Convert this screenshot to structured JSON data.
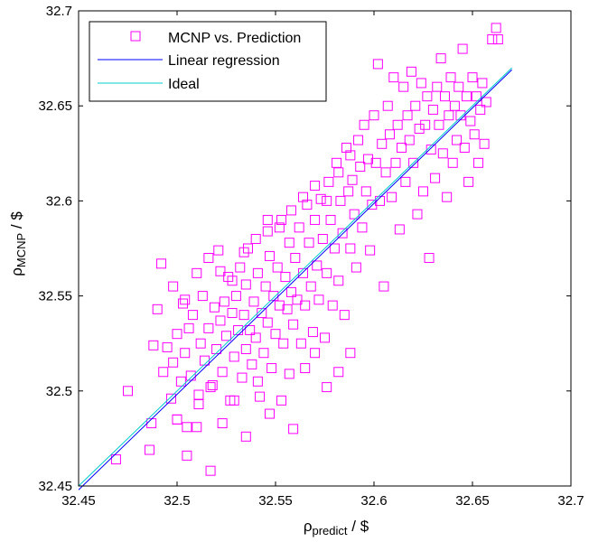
{
  "chart_data": {
    "type": "scatter",
    "xlabel": {
      "base": "ρ",
      "sub": "predict",
      "suffix": " / $"
    },
    "ylabel": {
      "base": "ρ",
      "sub": "MCNP",
      "suffix": " / $"
    },
    "xlim": [
      32.45,
      32.7
    ],
    "ylim": [
      32.45,
      32.7
    ],
    "xticks": [
      "32.45",
      "32.5",
      "32.55",
      "32.6",
      "32.65",
      "32.7"
    ],
    "yticks": [
      "32.45",
      "32.5",
      "32.55",
      "32.6",
      "32.65",
      "32.7"
    ],
    "grid": false,
    "legend_position": "top-left",
    "series": [
      {
        "name": "MCNP vs. Prediction",
        "kind": "markers",
        "marker": "square",
        "color": "#ff00ff",
        "points": [
          [
            32.469,
            32.464
          ],
          [
            32.475,
            32.5
          ],
          [
            32.486,
            32.469
          ],
          [
            32.487,
            32.483
          ],
          [
            32.488,
            32.524
          ],
          [
            32.49,
            32.543
          ],
          [
            32.492,
            32.567
          ],
          [
            32.493,
            32.51
          ],
          [
            32.495,
            32.523
          ],
          [
            32.497,
            32.496
          ],
          [
            32.498,
            32.515
          ],
          [
            32.5,
            32.53
          ],
          [
            32.5,
            32.485
          ],
          [
            32.502,
            32.505
          ],
          [
            32.503,
            32.546
          ],
          [
            32.504,
            32.52
          ],
          [
            32.505,
            32.466
          ],
          [
            32.506,
            32.533
          ],
          [
            32.507,
            32.508
          ],
          [
            32.508,
            32.54
          ],
          [
            32.51,
            32.481
          ],
          [
            32.511,
            32.498
          ],
          [
            32.512,
            32.525
          ],
          [
            32.513,
            32.55
          ],
          [
            32.514,
            32.516
          ],
          [
            32.516,
            32.533
          ],
          [
            32.517,
            32.458
          ],
          [
            32.518,
            32.503
          ],
          [
            32.519,
            32.544
          ],
          [
            32.52,
            32.522
          ],
          [
            32.521,
            32.574
          ],
          [
            32.522,
            32.537
          ],
          [
            32.523,
            32.51
          ],
          [
            32.524,
            32.547
          ],
          [
            32.525,
            32.529
          ],
          [
            32.526,
            32.56
          ],
          [
            32.527,
            32.495
          ],
          [
            32.528,
            32.541
          ],
          [
            32.529,
            32.518
          ],
          [
            32.53,
            32.55
          ],
          [
            32.531,
            32.532
          ],
          [
            32.532,
            32.565
          ],
          [
            32.533,
            32.507
          ],
          [
            32.534,
            32.54
          ],
          [
            32.535,
            32.522
          ],
          [
            32.535,
            32.556
          ],
          [
            32.536,
            32.575
          ],
          [
            32.537,
            32.532
          ],
          [
            32.538,
            32.514
          ],
          [
            32.539,
            32.547
          ],
          [
            32.54,
            32.528
          ],
          [
            32.541,
            32.562
          ],
          [
            32.542,
            32.497
          ],
          [
            32.543,
            32.541
          ],
          [
            32.544,
            32.52
          ],
          [
            32.545,
            32.555
          ],
          [
            32.546,
            32.584
          ],
          [
            32.546,
            32.536
          ],
          [
            32.547,
            32.571
          ],
          [
            32.548,
            32.512
          ],
          [
            32.549,
            32.55
          ],
          [
            32.55,
            32.53
          ],
          [
            32.551,
            32.565
          ],
          [
            32.552,
            32.545
          ],
          [
            32.553,
            32.59
          ],
          [
            32.554,
            32.525
          ],
          [
            32.555,
            32.56
          ],
          [
            32.556,
            32.543
          ],
          [
            32.557,
            32.578
          ],
          [
            32.557,
            32.509
          ],
          [
            32.558,
            32.552
          ],
          [
            32.559,
            32.535
          ],
          [
            32.56,
            32.57
          ],
          [
            32.561,
            32.548
          ],
          [
            32.562,
            32.586
          ],
          [
            32.563,
            32.525
          ],
          [
            32.564,
            32.562
          ],
          [
            32.565,
            32.545
          ],
          [
            32.566,
            32.598
          ],
          [
            32.567,
            32.578
          ],
          [
            32.568,
            32.555
          ],
          [
            32.569,
            32.531
          ],
          [
            32.57,
            32.59
          ],
          [
            32.571,
            32.566
          ],
          [
            32.572,
            32.548
          ],
          [
            32.573,
            32.601
          ],
          [
            32.574,
            32.58
          ],
          [
            32.575,
            32.528
          ],
          [
            32.576,
            32.562
          ],
          [
            32.577,
            32.61
          ],
          [
            32.578,
            32.59
          ],
          [
            32.579,
            32.545
          ],
          [
            32.58,
            32.575
          ],
          [
            32.581,
            32.62
          ],
          [
            32.582,
            32.558
          ],
          [
            32.583,
            32.6
          ],
          [
            32.584,
            32.583
          ],
          [
            32.585,
            32.54
          ],
          [
            32.586,
            32.628
          ],
          [
            32.587,
            32.605
          ],
          [
            32.588,
            32.575
          ],
          [
            32.589,
            32.611
          ],
          [
            32.59,
            32.593
          ],
          [
            32.591,
            32.565
          ],
          [
            32.592,
            32.632
          ],
          [
            32.593,
            32.618
          ],
          [
            32.594,
            32.586
          ],
          [
            32.595,
            32.64
          ],
          [
            32.596,
            32.605
          ],
          [
            32.597,
            32.622
          ],
          [
            32.598,
            32.574
          ],
          [
            32.599,
            32.598
          ],
          [
            32.6,
            32.645
          ],
          [
            32.601,
            32.62
          ],
          [
            32.602,
            32.672
          ],
          [
            32.603,
            32.6
          ],
          [
            32.604,
            32.63
          ],
          [
            32.605,
            32.555
          ],
          [
            32.606,
            32.615
          ],
          [
            32.607,
            32.65
          ],
          [
            32.608,
            32.635
          ],
          [
            32.609,
            32.602
          ],
          [
            32.61,
            32.665
          ],
          [
            32.611,
            32.62
          ],
          [
            32.612,
            32.64
          ],
          [
            32.613,
            32.585
          ],
          [
            32.614,
            32.628
          ],
          [
            32.615,
            32.66
          ],
          [
            32.616,
            32.61
          ],
          [
            32.617,
            32.645
          ],
          [
            32.618,
            32.632
          ],
          [
            32.619,
            32.668
          ],
          [
            32.62,
            32.62
          ],
          [
            32.621,
            32.65
          ],
          [
            32.622,
            32.593
          ],
          [
            32.623,
            32.638
          ],
          [
            32.624,
            32.662
          ],
          [
            32.625,
            32.605
          ],
          [
            32.626,
            32.64
          ],
          [
            32.627,
            32.655
          ],
          [
            32.628,
            32.57
          ],
          [
            32.629,
            32.627
          ],
          [
            32.63,
            32.648
          ],
          [
            32.631,
            32.612
          ],
          [
            32.632,
            32.66
          ],
          [
            32.633,
            32.64
          ],
          [
            32.634,
            32.675
          ],
          [
            32.635,
            32.625
          ],
          [
            32.636,
            32.655
          ],
          [
            32.637,
            32.602
          ],
          [
            32.638,
            32.645
          ],
          [
            32.639,
            32.665
          ],
          [
            32.64,
            32.62
          ],
          [
            32.641,
            32.65
          ],
          [
            32.642,
            32.632
          ],
          [
            32.643,
            32.66
          ],
          [
            32.644,
            32.645
          ],
          [
            32.645,
            32.68
          ],
          [
            32.646,
            32.628
          ],
          [
            32.647,
            32.655
          ],
          [
            32.648,
            32.61
          ],
          [
            32.649,
            32.642
          ],
          [
            32.65,
            32.665
          ],
          [
            32.651,
            32.635
          ],
          [
            32.652,
            32.655
          ],
          [
            32.653,
            32.62
          ],
          [
            32.654,
            32.648
          ],
          [
            32.655,
            32.662
          ],
          [
            32.656,
            32.63
          ],
          [
            32.657,
            32.652
          ],
          [
            32.66,
            32.685
          ],
          [
            32.662,
            32.691
          ],
          [
            32.663,
            32.685
          ],
          [
            32.5,
            32.485
          ],
          [
            32.505,
            32.481
          ],
          [
            32.511,
            32.493
          ],
          [
            32.517,
            32.502
          ],
          [
            32.523,
            32.483
          ],
          [
            32.529,
            32.495
          ],
          [
            32.535,
            32.476
          ],
          [
            32.541,
            32.505
          ],
          [
            32.547,
            32.488
          ],
          [
            32.553,
            32.495
          ],
          [
            32.559,
            32.48
          ],
          [
            32.565,
            32.512
          ],
          [
            32.57,
            32.52
          ],
          [
            32.576,
            32.502
          ],
          [
            32.582,
            32.51
          ],
          [
            32.588,
            32.52
          ],
          [
            32.498,
            32.555
          ],
          [
            32.504,
            32.548
          ],
          [
            32.51,
            32.562
          ],
          [
            32.516,
            32.57
          ],
          [
            32.522,
            32.563
          ],
          [
            32.528,
            32.558
          ],
          [
            32.534,
            32.573
          ],
          [
            32.54,
            32.58
          ],
          [
            32.546,
            32.59
          ],
          [
            32.552,
            32.586
          ],
          [
            32.558,
            32.595
          ],
          [
            32.564,
            32.602
          ],
          [
            32.57,
            32.608
          ],
          [
            32.576,
            32.6
          ],
          [
            32.582,
            32.615
          ],
          [
            32.588,
            32.624
          ]
        ]
      },
      {
        "name": "Linear regression",
        "kind": "line",
        "color": "#0000ff",
        "points": [
          [
            32.45,
            32.448
          ],
          [
            32.67,
            32.669
          ]
        ]
      },
      {
        "name": "Ideal",
        "kind": "line",
        "color": "#00cccc",
        "points": [
          [
            32.45,
            32.45
          ],
          [
            32.67,
            32.67
          ]
        ]
      }
    ]
  }
}
